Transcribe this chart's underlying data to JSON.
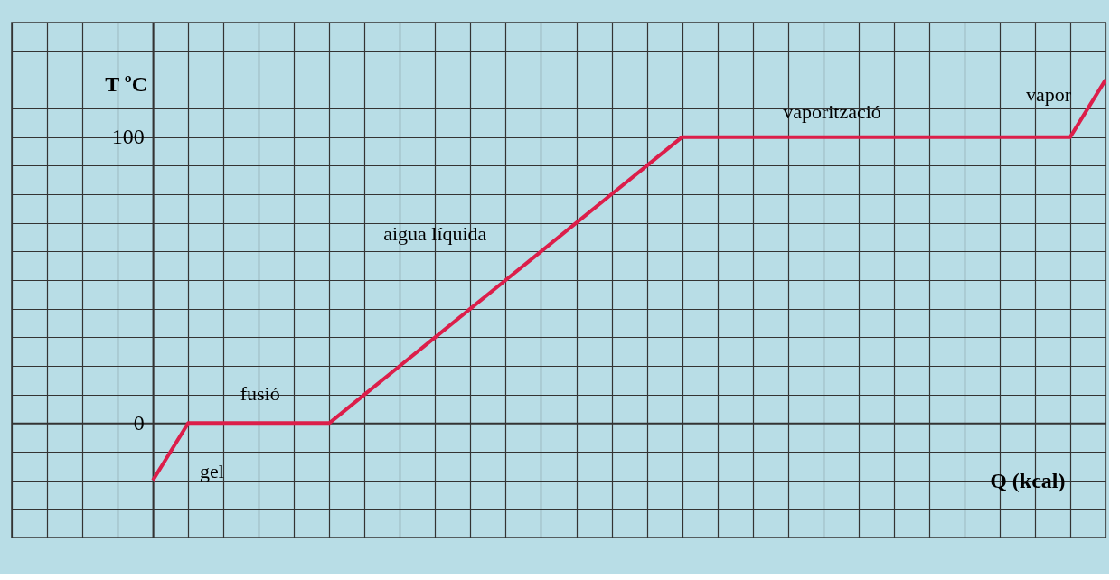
{
  "chart_data": {
    "type": "line",
    "xlabel": "Q (kcal)",
    "ylabel": "T ºC",
    "categories": [
      null,
      null,
      null,
      null,
      null,
      null,
      null,
      null,
      null,
      null,
      null,
      null,
      null,
      null,
      null,
      null,
      null,
      null,
      null,
      null,
      null,
      null,
      null,
      null,
      null,
      null,
      null,
      null,
      null,
      null,
      null,
      null
    ],
    "series": [
      {
        "color": "#dc1e4a",
        "values": [
          null,
          null,
          null,
          null,
          -20,
          0,
          0,
          0,
          0,
          0,
          10,
          20,
          30,
          40,
          50,
          60,
          70,
          80,
          90,
          100,
          100,
          100,
          100,
          100,
          100,
          100,
          100,
          100,
          100,
          100,
          100,
          120
        ]
      }
    ],
    "ylim": [
      -40,
      140
    ],
    "yticks": [
      {
        "value": -40,
        "label": null
      },
      {
        "value": -30,
        "label": null
      },
      {
        "value": -20,
        "label": null
      },
      {
        "value": -10,
        "label": null
      },
      0,
      {
        "value": 10,
        "label": null
      },
      {
        "value": 20,
        "label": null
      },
      {
        "value": 30,
        "label": null
      },
      {
        "value": 40,
        "label": null
      },
      {
        "value": 50,
        "label": null
      },
      {
        "value": 60,
        "label": null
      },
      {
        "value": 70,
        "label": null
      },
      {
        "value": 80,
        "label": null
      },
      {
        "value": 90,
        "label": null
      },
      100,
      {
        "value": 110,
        "label": null
      },
      {
        "value": 120,
        "label": null
      },
      {
        "value": 130,
        "label": null
      },
      {
        "value": 140,
        "label": null
      }
    ],
    "tick_labels": "y",
    "grid": true,
    "marker": "none",
    "line_style": "solid",
    "annotations": [
      "gel",
      "fusió",
      "aigua líquida",
      "vaporització",
      "vapor"
    ]
  }
}
